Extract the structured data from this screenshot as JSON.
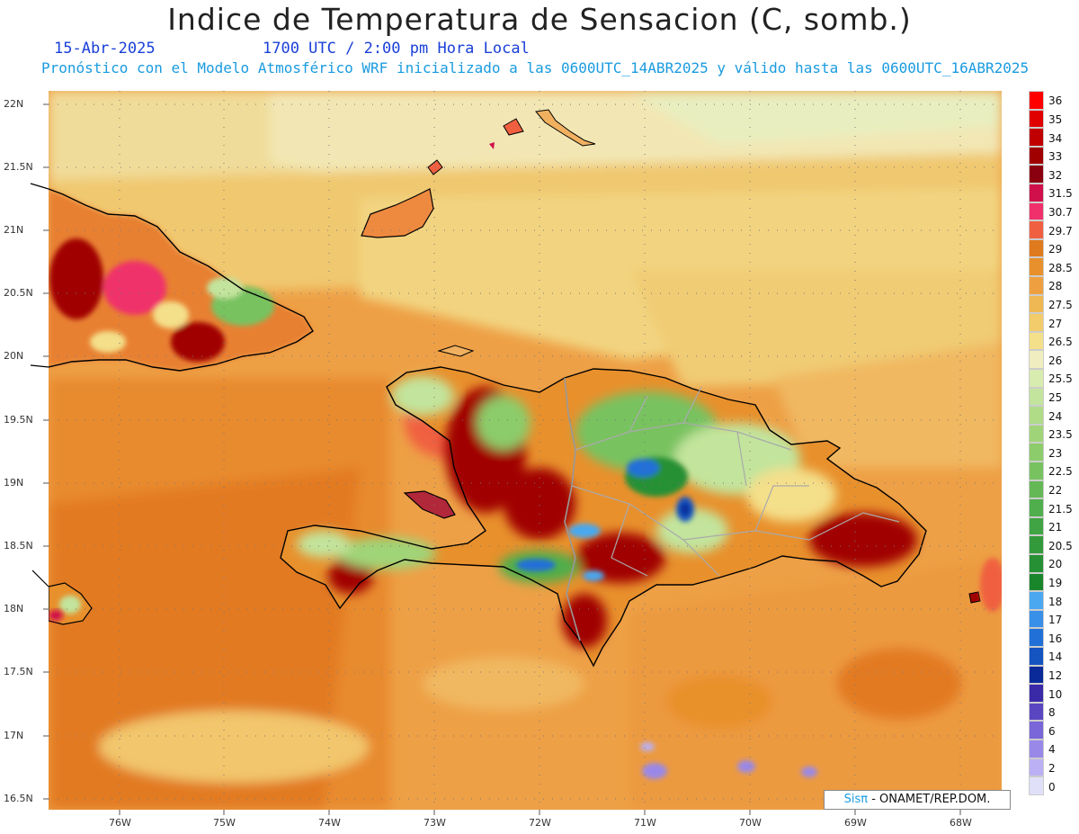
{
  "header": {
    "title": "Indice de Temperatura de Sensacion (C, somb.)",
    "date": "15-Abr-2025",
    "time": "1700 UTC / 2:00 pm Hora Local",
    "model_info": "Pronóstico con el Modelo Atmosférico WRF inicializado a las 0600UTC_14ABR2025 y válido hasta las  0600UTC_16ABR2025"
  },
  "map": {
    "lat_labels": [
      "22N",
      "21.5N",
      "21N",
      "20.5N",
      "20N",
      "19.5N",
      "19N",
      "18.5N",
      "18N",
      "17.5N",
      "17N",
      "16.5N"
    ],
    "lon_labels": [
      "76W",
      "75W",
      "74W",
      "73W",
      "72W",
      "71W",
      "70W",
      "69W",
      "68W"
    ]
  },
  "credit": {
    "brand": "Sisπ",
    "text": "- ONAMET/REP.DOM."
  },
  "legend": {
    "labels": [
      "36",
      "35",
      "34",
      "33",
      "32",
      "31.5",
      "30.7",
      "29.7",
      "29",
      "28.5",
      "28",
      "27.5",
      "27",
      "26.5",
      "26",
      "25.5",
      "25",
      "24",
      "23.5",
      "23",
      "22.5",
      "22",
      "21.5",
      "21",
      "20.5",
      "20",
      "19",
      "18",
      "17",
      "16",
      "14",
      "12",
      "10",
      "8",
      "6",
      "4",
      "2",
      "0"
    ],
    "colors": [
      "#ff0000",
      "#e00000",
      "#c00000",
      "#a00000",
      "#8a0010",
      "#d0104a",
      "#f0306a",
      "#f06040",
      "#e07a1e",
      "#e8902c",
      "#eea040",
      "#f0b852",
      "#f2cc6a",
      "#f4df8a",
      "#f0eec0",
      "#d8ecb0",
      "#c2e49c",
      "#b0dc88",
      "#a0d478",
      "#8ccc6a",
      "#78c260",
      "#64b856",
      "#50ae4c",
      "#40a444",
      "#339a3c",
      "#269034",
      "#1a862c",
      "#4aa8f0",
      "#3890e8",
      "#2070d8",
      "#1454c0",
      "#0a2a9a",
      "#3a2aa8",
      "#5a46c0",
      "#7a66d8",
      "#9a88e8",
      "#bcb0f4",
      "#e0e0f8"
    ]
  }
}
